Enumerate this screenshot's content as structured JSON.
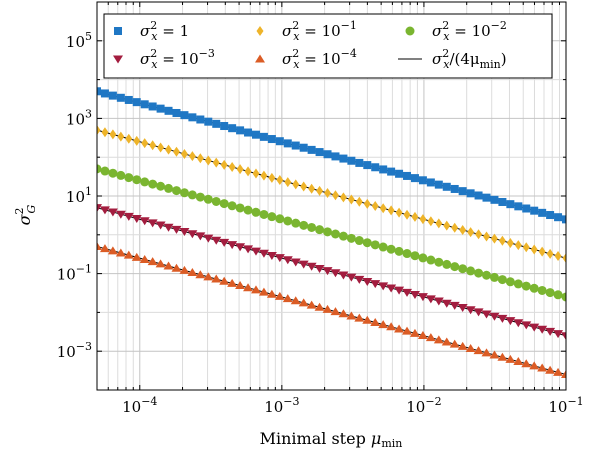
{
  "chart_data": {
    "type": "scatter",
    "xscale": "log",
    "yscale": "log",
    "xlim": [
      5e-05,
      0.1
    ],
    "ylim": [
      0.0001,
      1000000
    ],
    "grid": true,
    "legend_position": "top",
    "xlabel": "Minimal step μ_min",
    "ylabel": "σ_G^2",
    "x_ticks": [
      0.0001,
      0.001,
      0.01,
      0.1
    ],
    "x_tick_labels": [
      {
        "base": "10",
        "exp": "−4"
      },
      {
        "base": "10",
        "exp": "−3"
      },
      {
        "base": "10",
        "exp": "−2"
      },
      {
        "base": "10",
        "exp": "−1"
      }
    ],
    "y_ticks": [
      0.001,
      0.1,
      10,
      1000,
      100000
    ],
    "y_tick_labels": [
      {
        "base": "10",
        "exp": "−3"
      },
      {
        "base": "10",
        "exp": "−1"
      },
      {
        "base": "10",
        "exp": "1"
      },
      {
        "base": "10",
        "exp": "3"
      },
      {
        "base": "10",
        "exp": "5"
      }
    ],
    "series": [
      {
        "name": "σ_x^2 = 1",
        "label_main": "σ",
        "label_sub": "x",
        "label_sup": "2",
        "label_rest": " = 1",
        "label_rest_sup": "",
        "sigma2": 1,
        "marker": "square",
        "color": "#1f77c4",
        "points": 60
      },
      {
        "name": "σ_x^2 = 10^-1",
        "label_main": "σ",
        "label_sub": "x",
        "label_sup": "2",
        "label_rest": " = 10",
        "label_rest_sup": "−1",
        "sigma2": 0.1,
        "marker": "diamond",
        "color": "#eeb42a",
        "points": 60
      },
      {
        "name": "σ_x^2 = 10^-2",
        "label_main": "σ",
        "label_sub": "x",
        "label_sup": "2",
        "label_rest": " = 10",
        "label_rest_sup": "−2",
        "sigma2": 0.01,
        "marker": "circle",
        "color": "#7ab530",
        "points": 60
      },
      {
        "name": "σ_x^2 = 10^-3",
        "label_main": "σ",
        "label_sub": "x",
        "label_sup": "2",
        "label_rest": " = 10",
        "label_rest_sup": "−3",
        "sigma2": 0.001,
        "marker": "triangle-down",
        "color": "#a31d3f",
        "points": 60
      },
      {
        "name": "σ_x^2 = 10^-4",
        "label_main": "σ",
        "label_sub": "x",
        "label_sup": "2",
        "label_rest": " = 10",
        "label_rest_sup": "−4",
        "sigma2": 0.0001,
        "marker": "triangle-up",
        "color": "#db5c25",
        "points": 60
      }
    ],
    "theory_line": {
      "name": "σ_x^2/(4μ_min)",
      "label_main": "σ",
      "label_sub": "x",
      "label_sup": "2",
      "label_rest": "/(4μ",
      "label_rest_sub": "min",
      "label_end": ")",
      "formula": "sigma2 / (4 * mu)",
      "color": "#000000"
    }
  }
}
